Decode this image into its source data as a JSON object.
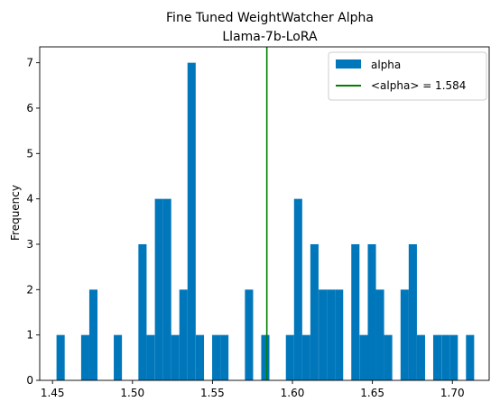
{
  "chart_data": {
    "type": "bar",
    "title": "Fine Tuned WeightWatcher Alpha",
    "subtitle": "Llama-7b-LoRA",
    "xlabel": "",
    "ylabel": "Frequency",
    "xlim": [
      1.442,
      1.723
    ],
    "ylim": [
      0,
      7.35
    ],
    "x_ticks": [
      1.45,
      1.5,
      1.55,
      1.6,
      1.65,
      1.7
    ],
    "x_tick_labels": [
      "1.45",
      "1.50",
      "1.55",
      "1.60",
      "1.65",
      "1.70"
    ],
    "y_ticks": [
      0,
      1,
      2,
      3,
      4,
      5,
      6,
      7
    ],
    "y_tick_labels": [
      "0",
      "1",
      "2",
      "3",
      "4",
      "5",
      "6",
      "7"
    ],
    "bin_width": 0.00512,
    "bins": [
      {
        "x": 1.4525,
        "count": 1
      },
      {
        "x": 1.4679,
        "count": 1
      },
      {
        "x": 1.473,
        "count": 2
      },
      {
        "x": 1.4883,
        "count": 1
      },
      {
        "x": 1.5037,
        "count": 3
      },
      {
        "x": 1.5088,
        "count": 1
      },
      {
        "x": 1.514,
        "count": 4
      },
      {
        "x": 1.5191,
        "count": 4
      },
      {
        "x": 1.5242,
        "count": 1
      },
      {
        "x": 1.5293,
        "count": 2
      },
      {
        "x": 1.5344,
        "count": 7
      },
      {
        "x": 1.5396,
        "count": 1
      },
      {
        "x": 1.5498,
        "count": 1
      },
      {
        "x": 1.5549,
        "count": 1
      },
      {
        "x": 1.5703,
        "count": 2
      },
      {
        "x": 1.5805,
        "count": 1
      },
      {
        "x": 1.5959,
        "count": 1
      },
      {
        "x": 1.601,
        "count": 4
      },
      {
        "x": 1.6061,
        "count": 1
      },
      {
        "x": 1.6112,
        "count": 3
      },
      {
        "x": 1.6164,
        "count": 2
      },
      {
        "x": 1.6215,
        "count": 2
      },
      {
        "x": 1.6266,
        "count": 2
      },
      {
        "x": 1.6368,
        "count": 3
      },
      {
        "x": 1.642,
        "count": 1
      },
      {
        "x": 1.6471,
        "count": 3
      },
      {
        "x": 1.6522,
        "count": 2
      },
      {
        "x": 1.6573,
        "count": 1
      },
      {
        "x": 1.6676,
        "count": 2
      },
      {
        "x": 1.6727,
        "count": 3
      },
      {
        "x": 1.6778,
        "count": 1
      },
      {
        "x": 1.688,
        "count": 1
      },
      {
        "x": 1.6932,
        "count": 1
      },
      {
        "x": 1.6983,
        "count": 1
      },
      {
        "x": 1.7085,
        "count": 1
      }
    ],
    "mean_line": {
      "value": 1.584,
      "label": "<alpha> = 1.584",
      "color": "#008000"
    },
    "series": [
      {
        "name": "alpha",
        "color": "#0077bb"
      }
    ],
    "legend_position": "top-right",
    "grid": false
  }
}
